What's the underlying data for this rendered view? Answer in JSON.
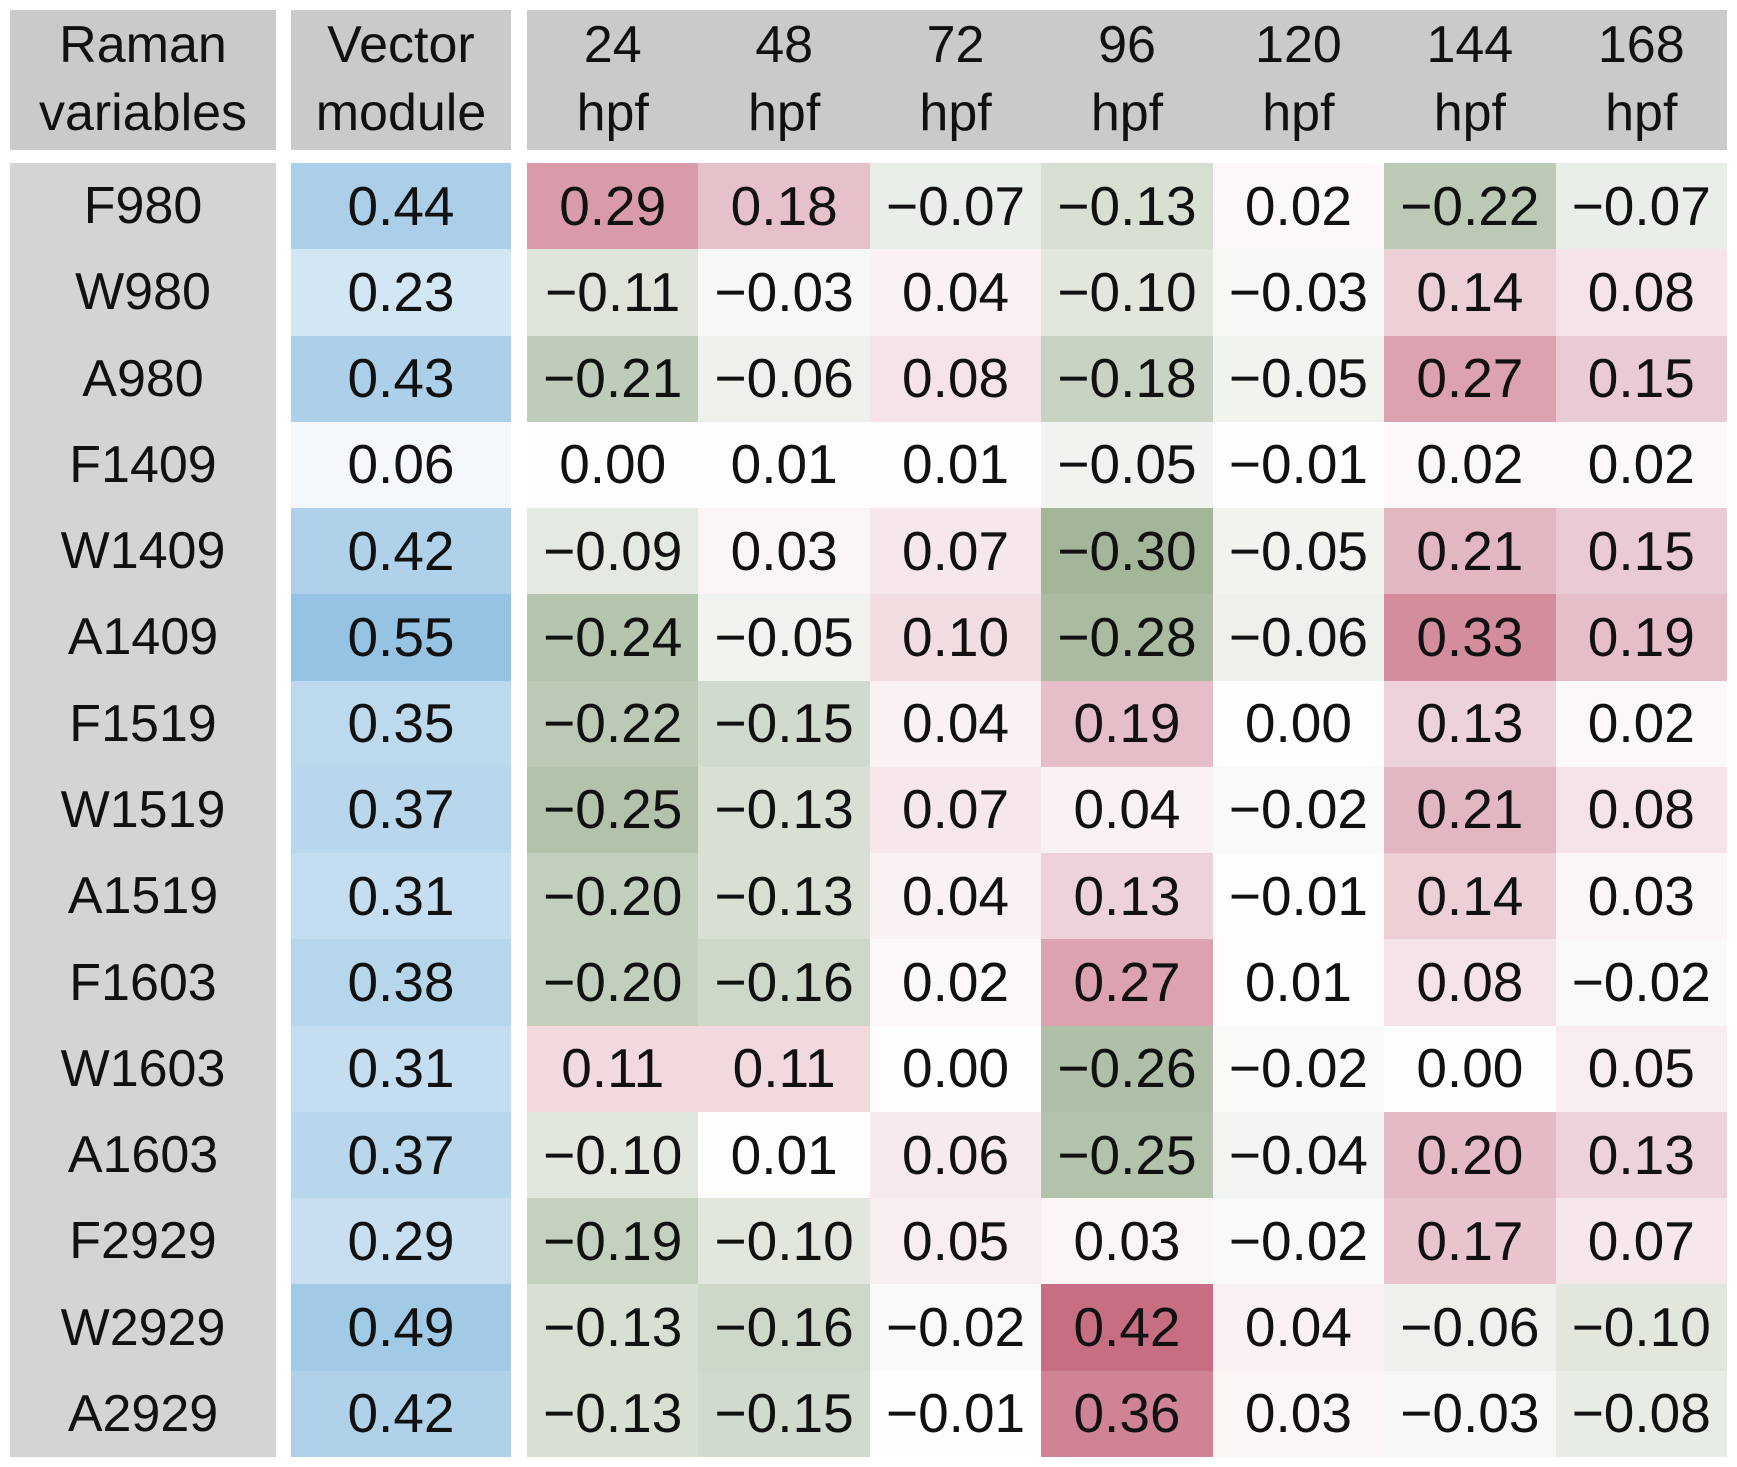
{
  "chart_data": {
    "type": "heatmap",
    "title": "",
    "headers": {
      "row": [
        "Raman",
        "variables"
      ],
      "module": [
        "Vector",
        "module"
      ],
      "time": [
        [
          "24",
          "hpf"
        ],
        [
          "48",
          "hpf"
        ],
        [
          "72",
          "hpf"
        ],
        [
          "96",
          "hpf"
        ],
        [
          "120",
          "hpf"
        ],
        [
          "144",
          "hpf"
        ],
        [
          "168",
          "hpf"
        ]
      ]
    },
    "rows": [
      {
        "variable": "F980",
        "vector_module": 0.44,
        "values": [
          0.29,
          0.18,
          -0.07,
          -0.13,
          0.02,
          -0.22,
          -0.07
        ]
      },
      {
        "variable": "W980",
        "vector_module": 0.23,
        "values": [
          -0.11,
          -0.03,
          0.04,
          -0.1,
          -0.03,
          0.14,
          0.08
        ]
      },
      {
        "variable": "A980",
        "vector_module": 0.43,
        "values": [
          -0.21,
          -0.06,
          0.08,
          -0.18,
          -0.05,
          0.27,
          0.15
        ]
      },
      {
        "variable": "F1409",
        "vector_module": 0.06,
        "values": [
          0.0,
          0.01,
          0.01,
          -0.05,
          -0.01,
          0.02,
          0.02
        ]
      },
      {
        "variable": "W1409",
        "vector_module": 0.42,
        "values": [
          -0.09,
          0.03,
          0.07,
          -0.3,
          -0.05,
          0.21,
          0.15
        ]
      },
      {
        "variable": "A1409",
        "vector_module": 0.55,
        "values": [
          -0.24,
          -0.05,
          0.1,
          -0.28,
          -0.06,
          0.33,
          0.19
        ]
      },
      {
        "variable": "F1519",
        "vector_module": 0.35,
        "values": [
          -0.22,
          -0.15,
          0.04,
          0.19,
          0.0,
          0.13,
          0.02
        ]
      },
      {
        "variable": "W1519",
        "vector_module": 0.37,
        "values": [
          -0.25,
          -0.13,
          0.07,
          0.04,
          -0.02,
          0.21,
          0.08
        ]
      },
      {
        "variable": "A1519",
        "vector_module": 0.31,
        "values": [
          -0.2,
          -0.13,
          0.04,
          0.13,
          -0.01,
          0.14,
          0.03
        ]
      },
      {
        "variable": "F1603",
        "vector_module": 0.38,
        "values": [
          -0.2,
          -0.16,
          0.02,
          0.27,
          0.01,
          0.08,
          -0.02
        ]
      },
      {
        "variable": "W1603",
        "vector_module": 0.31,
        "values": [
          0.11,
          0.11,
          0.0,
          -0.26,
          -0.02,
          0.0,
          0.05
        ]
      },
      {
        "variable": "A1603",
        "vector_module": 0.37,
        "values": [
          -0.1,
          0.01,
          0.06,
          -0.25,
          -0.04,
          0.2,
          0.13
        ]
      },
      {
        "variable": "F2929",
        "vector_module": 0.29,
        "values": [
          -0.19,
          -0.1,
          0.05,
          0.03,
          -0.02,
          0.17,
          0.07
        ]
      },
      {
        "variable": "W2929",
        "vector_module": 0.49,
        "values": [
          -0.13,
          -0.16,
          -0.02,
          0.42,
          0.04,
          -0.06,
          -0.1
        ]
      },
      {
        "variable": "A2929",
        "vector_module": 0.42,
        "values": [
          -0.13,
          -0.15,
          -0.01,
          0.36,
          0.03,
          -0.03,
          -0.08
        ]
      }
    ],
    "colors": {
      "header_bg": "#cacaca",
      "label_bg": "#d4d4d4",
      "positive_max": "#c4647a",
      "negative_max": "#769268",
      "module_max": "#96c3e4",
      "zero_bg": "#fdfdfd",
      "text": "#111111",
      "scale_limit": 0.45,
      "module_scale_limit": 0.55
    },
    "legend_position": "none",
    "grid": false
  }
}
